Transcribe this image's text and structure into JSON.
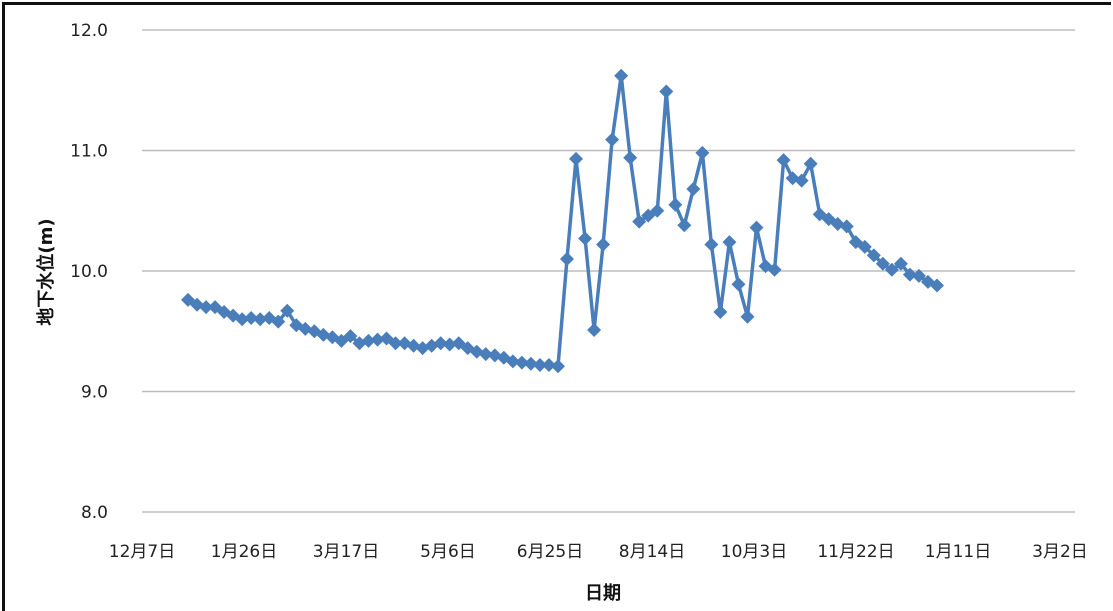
{
  "chart_data": {
    "type": "line",
    "xlabel": "日期",
    "ylabel": "地下水位(m)",
    "ylim": [
      8.0,
      12.0
    ],
    "y_ticks": [
      "8.0",
      "9.0",
      "10.0",
      "11.0",
      "12.0"
    ],
    "x_ticks": [
      "12月7日",
      "1月26日",
      "3月17日",
      "5月6日",
      "6月25日",
      "8月14日",
      "10月3日",
      "11月22日",
      "1月11日",
      "3月2日"
    ],
    "grid": "horizontal",
    "legend": "none",
    "marker": "diamond",
    "series_color": "#4a7ebb",
    "series": [
      {
        "values": [
          9.76,
          9.72,
          9.7,
          9.7,
          9.66,
          9.63,
          9.6,
          9.61,
          9.6,
          9.61,
          9.58,
          9.67,
          9.55,
          9.52,
          9.5,
          9.47,
          9.45,
          9.42,
          9.46,
          9.4,
          9.42,
          9.43,
          9.44,
          9.4,
          9.4,
          9.38,
          9.36,
          9.38,
          9.4,
          9.39,
          9.4,
          9.36,
          9.33,
          9.31,
          9.3,
          9.28,
          9.25,
          9.24,
          9.23,
          9.22,
          9.22,
          9.21,
          10.1,
          10.93,
          10.27,
          9.51,
          10.22,
          11.09,
          11.62,
          10.94,
          10.41,
          10.46,
          10.5,
          11.49,
          10.55,
          10.38,
          10.68,
          10.98,
          10.22,
          9.66,
          10.24,
          9.89,
          9.62,
          10.36,
          10.04,
          10.01,
          10.92,
          10.77,
          10.75,
          10.89,
          10.47,
          10.43,
          10.39,
          10.37,
          10.24,
          10.2,
          10.13,
          10.06,
          10.01,
          10.06,
          9.97,
          9.96,
          9.91,
          9.88
        ]
      }
    ]
  }
}
